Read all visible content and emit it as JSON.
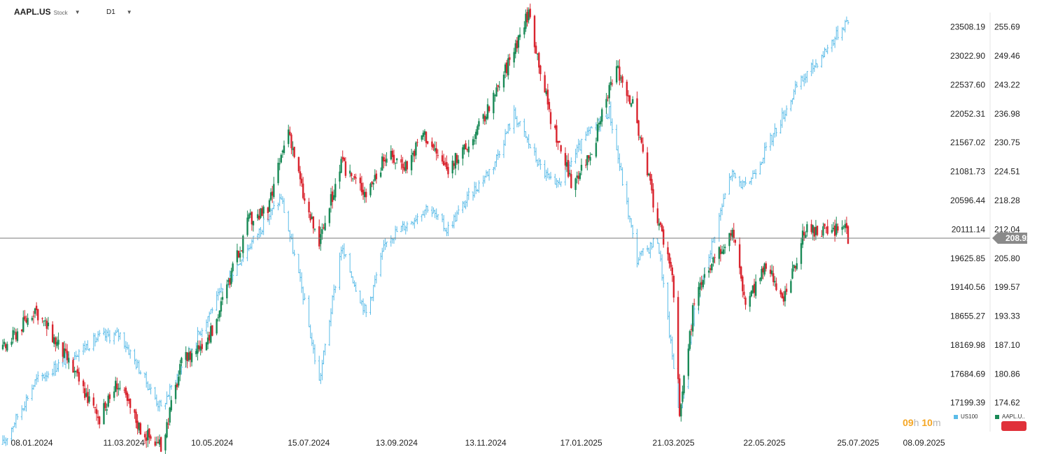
{
  "header": {
    "symbol": "AAPL.US",
    "symbol_type": "Stock",
    "timeframe": "D1"
  },
  "colors": {
    "up": "#1a8a57",
    "down": "#d9252f",
    "us100_line": "#5bbce8",
    "price_line": "#7a7a7a",
    "price_badge_bg": "#8a8a8a",
    "countdown": "#f5a623"
  },
  "countdown": {
    "hours": "09",
    "hours_unit": "h",
    "minutes": "10",
    "minutes_unit": "m"
  },
  "legend": [
    {
      "name": "US100",
      "color": "#5bbce8"
    },
    {
      "name": "AAPL.U..",
      "color": "#1a8a57"
    }
  ],
  "current_price": "208.92",
  "chart_data": {
    "type": "candlestick_with_line_overlay",
    "grid": false,
    "x_ticks": [
      "08.01.2024",
      "11.03.2024",
      "10.05.2024",
      "15.07.2024",
      "13.09.2024",
      "13.11.2024",
      "17.01.2025",
      "21.03.2025",
      "22.05.2025",
      "25.07.2025",
      "08.09.2025"
    ],
    "y_ticks_right": [
      "255.69",
      "249.46",
      "243.22",
      "236.98",
      "230.75",
      "224.51",
      "218.28",
      "212.04",
      "205.80",
      "199.57",
      "193.33",
      "187.10",
      "180.86",
      "174.62"
    ],
    "y_ticks_left": [
      "23508.19",
      "23022.90",
      "22537.60",
      "22052.31",
      "21567.02",
      "21081.73",
      "20596.44",
      "20111.14",
      "19625.85",
      "19140.56",
      "18655.27",
      "18169.98",
      "17684.69",
      "17199.39"
    ],
    "aapl_ylim": [
      168.4,
      258.8
    ],
    "us100_ylim": [
      16714,
      23750
    ],
    "aapl_keypoints": [
      {
        "date": "2024-01-02",
        "close": 186
      },
      {
        "date": "2024-01-24",
        "close": 195
      },
      {
        "date": "2024-02-15",
        "close": 184
      },
      {
        "date": "2024-03-08",
        "close": 171
      },
      {
        "date": "2024-03-20",
        "close": 179
      },
      {
        "date": "2024-04-05",
        "close": 169
      },
      {
        "date": "2024-04-19",
        "close": 165
      },
      {
        "date": "2024-05-03",
        "close": 183
      },
      {
        "date": "2024-05-24",
        "close": 190
      },
      {
        "date": "2024-06-11",
        "close": 207
      },
      {
        "date": "2024-06-18",
        "close": 214
      },
      {
        "date": "2024-07-01",
        "close": 216
      },
      {
        "date": "2024-07-15",
        "close": 234
      },
      {
        "date": "2024-07-26",
        "close": 218
      },
      {
        "date": "2024-08-05",
        "close": 209
      },
      {
        "date": "2024-08-20",
        "close": 226
      },
      {
        "date": "2024-09-06",
        "close": 220
      },
      {
        "date": "2024-09-20",
        "close": 228
      },
      {
        "date": "2024-10-04",
        "close": 226
      },
      {
        "date": "2024-10-15",
        "close": 233
      },
      {
        "date": "2024-10-31",
        "close": 225
      },
      {
        "date": "2024-11-15",
        "close": 230
      },
      {
        "date": "2024-12-02",
        "close": 240
      },
      {
        "date": "2024-12-26",
        "close": 259
      },
      {
        "date": "2025-01-10",
        "close": 236
      },
      {
        "date": "2025-01-24",
        "close": 222
      },
      {
        "date": "2025-02-07",
        "close": 229
      },
      {
        "date": "2025-02-24",
        "close": 247
      },
      {
        "date": "2025-03-07",
        "close": 239
      },
      {
        "date": "2025-03-21",
        "close": 218
      },
      {
        "date": "2025-04-03",
        "close": 203
      },
      {
        "date": "2025-04-08",
        "close": 172
      },
      {
        "date": "2025-04-18",
        "close": 197
      },
      {
        "date": "2025-05-02",
        "close": 205
      },
      {
        "date": "2025-05-14",
        "close": 212
      },
      {
        "date": "2025-05-23",
        "close": 196
      },
      {
        "date": "2025-06-06",
        "close": 204
      },
      {
        "date": "2025-06-20",
        "close": 197
      },
      {
        "date": "2025-07-02",
        "close": 212
      },
      {
        "date": "2025-07-18",
        "close": 211
      },
      {
        "date": "2025-07-31",
        "close": 213
      },
      {
        "date": "2025-08-01",
        "close": 208.92
      }
    ],
    "us100_keypoints": [
      {
        "date": "2024-01-02",
        "close": 16500
      },
      {
        "date": "2024-01-24",
        "close": 17550
      },
      {
        "date": "2024-02-15",
        "close": 17950
      },
      {
        "date": "2024-03-08",
        "close": 18300
      },
      {
        "date": "2024-03-22",
        "close": 18350
      },
      {
        "date": "2024-04-19",
        "close": 17100
      },
      {
        "date": "2024-05-03",
        "close": 17800
      },
      {
        "date": "2024-05-24",
        "close": 18800
      },
      {
        "date": "2024-06-12",
        "close": 19600
      },
      {
        "date": "2024-07-10",
        "close": 20650
      },
      {
        "date": "2024-07-25",
        "close": 19000
      },
      {
        "date": "2024-08-05",
        "close": 17550
      },
      {
        "date": "2024-08-20",
        "close": 19800
      },
      {
        "date": "2024-09-06",
        "close": 18700
      },
      {
        "date": "2024-09-20",
        "close": 19950
      },
      {
        "date": "2024-10-04",
        "close": 20200
      },
      {
        "date": "2024-10-18",
        "close": 20500
      },
      {
        "date": "2024-10-31",
        "close": 20100
      },
      {
        "date": "2024-11-15",
        "close": 20650
      },
      {
        "date": "2024-12-02",
        "close": 21200
      },
      {
        "date": "2024-12-16",
        "close": 22050
      },
      {
        "date": "2025-01-02",
        "close": 21200
      },
      {
        "date": "2025-01-13",
        "close": 20800
      },
      {
        "date": "2025-02-04",
        "close": 21700
      },
      {
        "date": "2025-02-19",
        "close": 22100
      },
      {
        "date": "2025-03-10",
        "close": 19600
      },
      {
        "date": "2025-03-24",
        "close": 19950
      },
      {
        "date": "2025-04-08",
        "close": 17000
      },
      {
        "date": "2025-04-17",
        "close": 18600
      },
      {
        "date": "2025-04-25",
        "close": 19400
      },
      {
        "date": "2025-05-13",
        "close": 21050
      },
      {
        "date": "2025-05-23",
        "close": 20800
      },
      {
        "date": "2025-06-11",
        "close": 21700
      },
      {
        "date": "2025-06-27",
        "close": 22500
      },
      {
        "date": "2025-07-10",
        "close": 22900
      },
      {
        "date": "2025-07-25",
        "close": 23400
      },
      {
        "date": "2025-08-01",
        "close": 23650
      }
    ]
  }
}
